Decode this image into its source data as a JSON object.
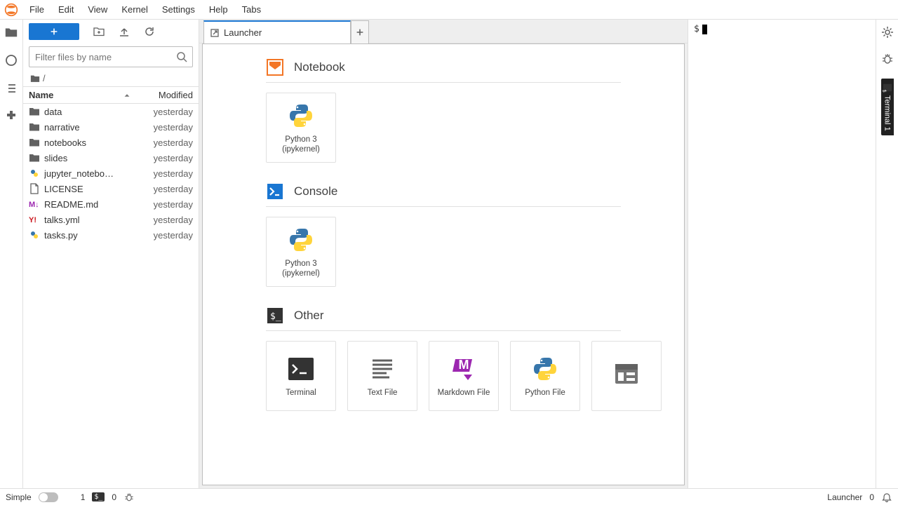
{
  "menubar": [
    "File",
    "Edit",
    "View",
    "Kernel",
    "Settings",
    "Help",
    "Tabs"
  ],
  "filepanel": {
    "filter_placeholder": "Filter files by name",
    "breadcrumb_root": "/",
    "columns": {
      "name": "Name",
      "modified": "Modified"
    },
    "files": [
      {
        "icon": "folder",
        "name": "data",
        "modified": "yesterday"
      },
      {
        "icon": "folder",
        "name": "narrative",
        "modified": "yesterday"
      },
      {
        "icon": "folder",
        "name": "notebooks",
        "modified": "yesterday"
      },
      {
        "icon": "folder",
        "name": "slides",
        "modified": "yesterday"
      },
      {
        "icon": "python",
        "name": "jupyter_notebo…",
        "modified": "yesterday"
      },
      {
        "icon": "file",
        "name": "LICENSE",
        "modified": "yesterday"
      },
      {
        "icon": "markdown",
        "name": "README.md",
        "modified": "yesterday"
      },
      {
        "icon": "yaml",
        "name": "talks.yml",
        "modified": "yesterday"
      },
      {
        "icon": "python",
        "name": "tasks.py",
        "modified": "yesterday"
      }
    ]
  },
  "tabs": {
    "launcher": "Launcher"
  },
  "launcher": {
    "sections": {
      "notebook": {
        "title": "Notebook",
        "cards": [
          {
            "label": "Python 3\n(ipykernel)",
            "icon": "python"
          }
        ]
      },
      "console": {
        "title": "Console",
        "cards": [
          {
            "label": "Python 3\n(ipykernel)",
            "icon": "python"
          }
        ]
      },
      "other": {
        "title": "Other",
        "cards": [
          {
            "label": "Terminal",
            "icon": "terminal"
          },
          {
            "label": "Text File",
            "icon": "text"
          },
          {
            "label": "Markdown File",
            "icon": "markdown-big"
          },
          {
            "label": "Python File",
            "icon": "python"
          },
          {
            "label": "",
            "icon": "context"
          }
        ]
      }
    }
  },
  "terminal": {
    "prompt": "$"
  },
  "rightbar": {
    "terminal_tab": "Terminal 1"
  },
  "statusbar": {
    "simple": "Simple",
    "kernel_count": "1",
    "terminal_count": "0",
    "right_label": "Launcher",
    "right_count": "0"
  },
  "colors": {
    "accent": "#1976d2",
    "orange": "#f37626",
    "purple": "#9c27b0",
    "darkgray": "#424242"
  }
}
